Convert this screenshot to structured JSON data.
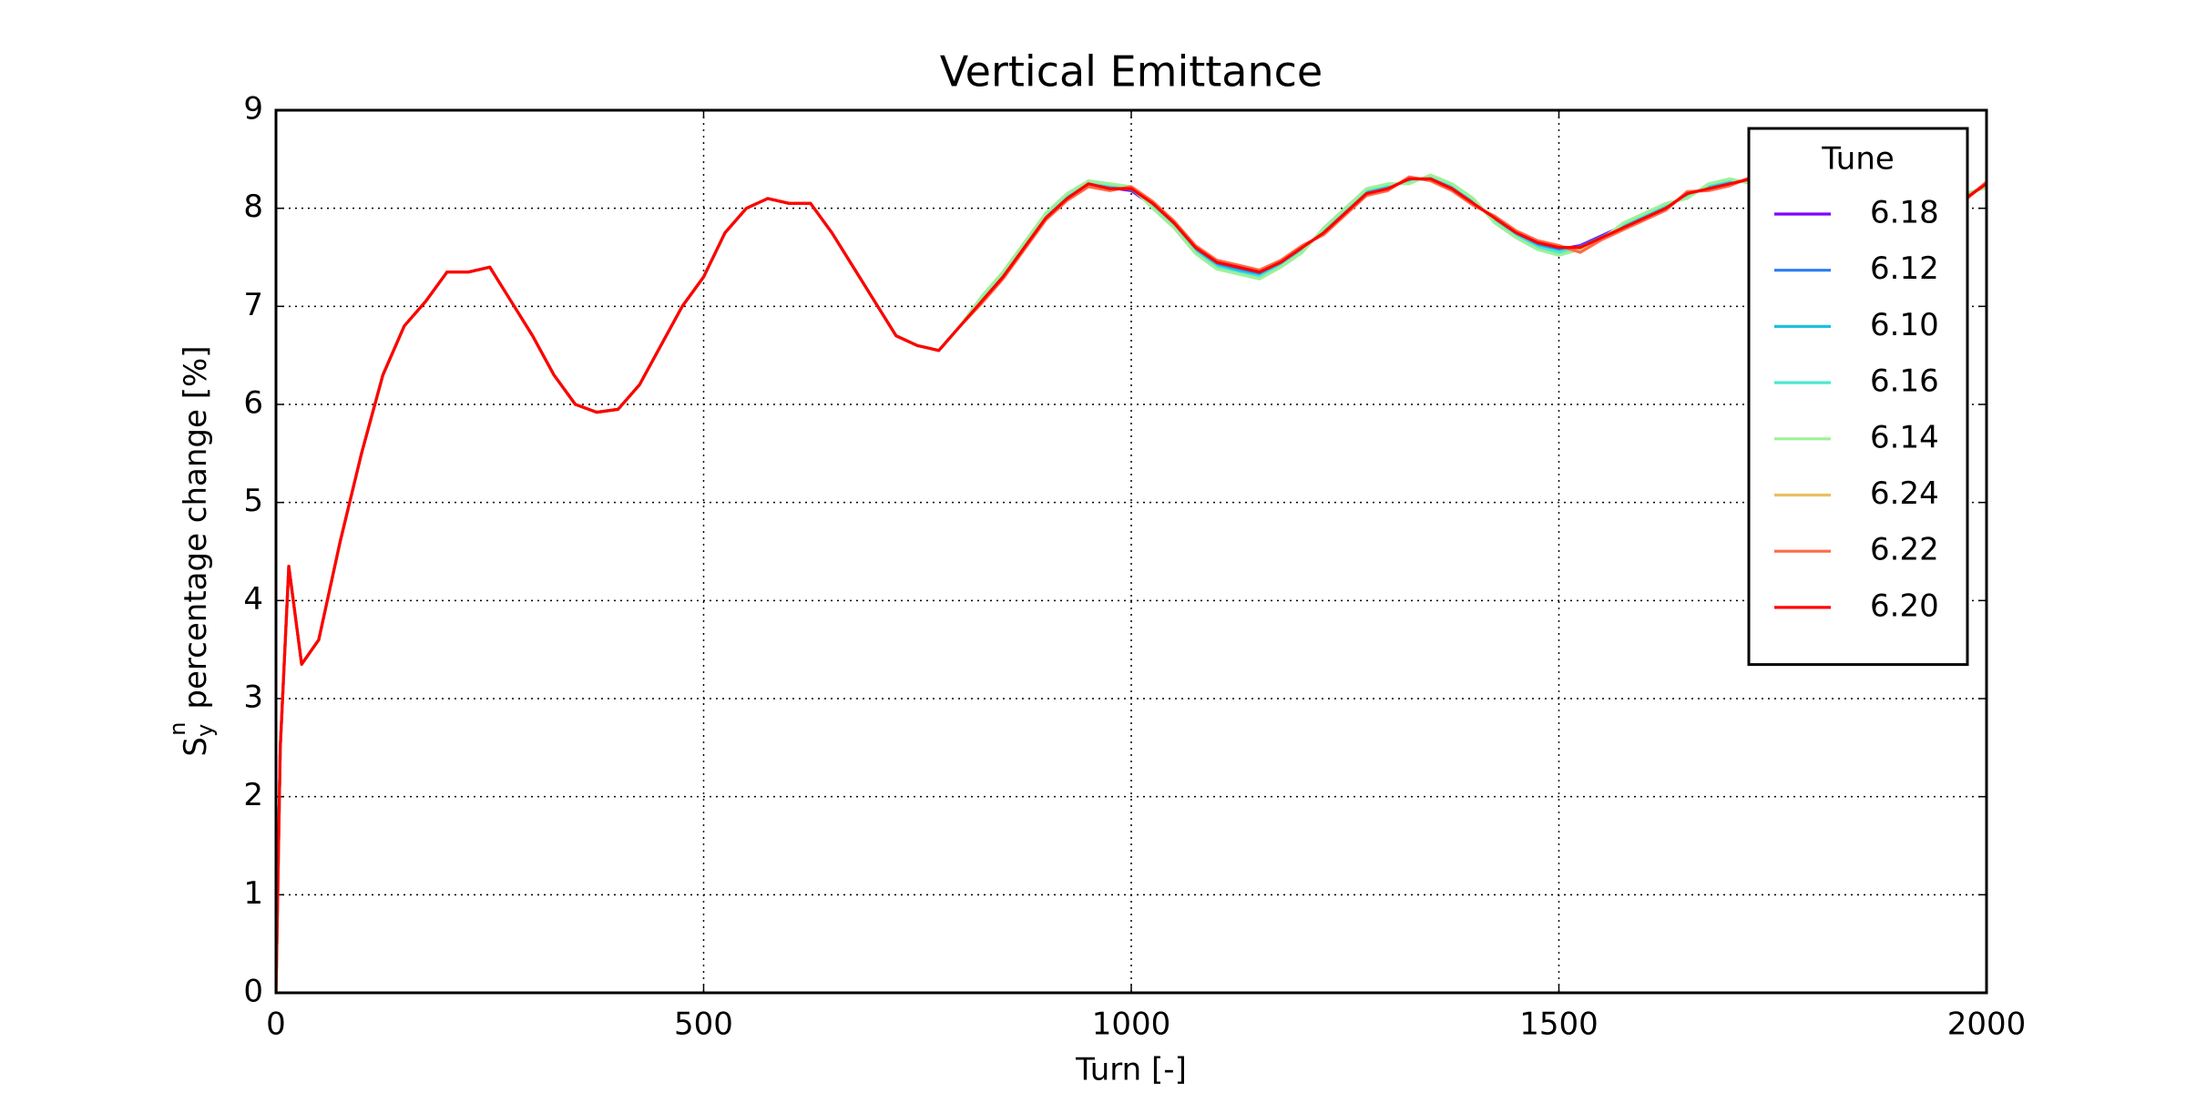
{
  "chart_data": {
    "type": "line",
    "title": "Vertical Emittance",
    "xlabel": "Turn [-]",
    "ylabel": {
      "base": "S",
      "sub": "y",
      "sup": "n",
      "text": "percentage change [%]"
    },
    "legend_title": "Tune",
    "legend": "upper right",
    "grid": true,
    "xlim": [
      0,
      2000
    ],
    "xticks": [
      0,
      500,
      1000,
      1500,
      2000
    ],
    "ylim": [
      0,
      9
    ],
    "yticks": [
      0,
      1,
      2,
      3,
      4,
      5,
      6,
      7,
      8,
      9
    ],
    "x": [
      0,
      5,
      15,
      30,
      50,
      75,
      100,
      125,
      150,
      175,
      200,
      225,
      250,
      275,
      300,
      325,
      350,
      375,
      400,
      425,
      450,
      475,
      500,
      525,
      550,
      575,
      600,
      625,
      650,
      675,
      700,
      725,
      750,
      775,
      800,
      825,
      850,
      875,
      900,
      925,
      950,
      975,
      1000,
      1025,
      1050,
      1075,
      1100,
      1125,
      1150,
      1175,
      1200,
      1225,
      1250,
      1275,
      1300,
      1325,
      1350,
      1375,
      1400,
      1425,
      1450,
      1475,
      1500,
      1525,
      1550,
      1575,
      1600,
      1625,
      1650,
      1675,
      1700,
      1725,
      1750,
      1775,
      1800,
      1825,
      1850,
      1875,
      1900,
      1925,
      1950,
      1975,
      2000
    ],
    "series": [
      {
        "name": "6.18",
        "color": "#8000ff",
        "values": [
          0,
          2.5,
          4.35,
          3.35,
          3.6,
          4.6,
          5.5,
          6.3,
          6.8,
          7.05,
          7.35,
          7.35,
          7.4,
          7.05,
          6.7,
          6.3,
          6.0,
          5.92,
          5.95,
          6.2,
          6.6,
          7.0,
          7.3,
          7.75,
          8.0,
          8.1,
          8.05,
          8.05,
          7.75,
          7.4,
          7.05,
          6.7,
          6.6,
          6.55,
          6.8,
          7.05,
          7.32,
          7.62,
          7.92,
          8.12,
          8.24,
          8.21,
          8.18,
          8.03,
          7.83,
          7.58,
          7.43,
          7.38,
          7.33,
          7.43,
          7.58,
          7.77,
          7.97,
          8.17,
          8.22,
          8.28,
          8.31,
          8.22,
          8.07,
          7.88,
          7.73,
          7.63,
          7.58,
          7.62,
          7.72,
          7.82,
          7.92,
          8.02,
          8.13,
          8.22,
          8.27,
          8.28,
          8.31,
          8.32,
          8.28,
          8.27,
          8.23,
          8.24,
          8.22,
          8.17,
          8.13,
          8.12,
          8.24
        ]
      },
      {
        "name": "6.12",
        "color": "#2c7ef0",
        "values": [
          0,
          2.5,
          4.35,
          3.35,
          3.6,
          4.6,
          5.5,
          6.3,
          6.8,
          7.05,
          7.35,
          7.35,
          7.4,
          7.05,
          6.7,
          6.3,
          6.0,
          5.92,
          5.95,
          6.2,
          6.6,
          7.0,
          7.3,
          7.75,
          8.0,
          8.1,
          8.05,
          8.05,
          7.75,
          7.4,
          7.05,
          6.7,
          6.6,
          6.55,
          6.8,
          7.06,
          7.31,
          7.61,
          7.91,
          8.11,
          8.26,
          8.22,
          8.19,
          8.04,
          7.84,
          7.57,
          7.42,
          7.37,
          7.32,
          7.44,
          7.59,
          7.76,
          7.96,
          8.16,
          8.21,
          8.29,
          8.3,
          8.21,
          8.06,
          7.89,
          7.74,
          7.62,
          7.57,
          7.61,
          7.71,
          7.81,
          7.91,
          8.01,
          8.14,
          8.21,
          8.26,
          8.29,
          8.3,
          8.31,
          8.29,
          8.26,
          8.24,
          8.25,
          8.21,
          8.16,
          8.14,
          8.11,
          8.24
        ]
      },
      {
        "name": "6.10",
        "color": "#1ec0e0",
        "values": [
          0,
          2.5,
          4.35,
          3.35,
          3.6,
          4.6,
          5.5,
          6.3,
          6.8,
          7.05,
          7.35,
          7.35,
          7.4,
          7.05,
          6.7,
          6.3,
          6.0,
          5.92,
          5.95,
          6.2,
          6.6,
          7.0,
          7.3,
          7.75,
          8.0,
          8.1,
          8.05,
          8.05,
          7.75,
          7.4,
          7.05,
          6.7,
          6.6,
          6.55,
          6.8,
          7.07,
          7.33,
          7.63,
          7.93,
          8.13,
          8.25,
          8.23,
          8.2,
          8.02,
          7.82,
          7.56,
          7.41,
          7.36,
          7.31,
          7.42,
          7.57,
          7.78,
          7.98,
          8.18,
          8.23,
          8.27,
          8.32,
          8.23,
          8.08,
          7.87,
          7.72,
          7.61,
          7.56,
          7.6,
          7.7,
          7.83,
          7.93,
          8.03,
          8.12,
          8.23,
          8.28,
          8.27,
          8.32,
          8.33,
          8.27,
          8.28,
          8.22,
          8.23,
          8.23,
          8.18,
          8.12,
          8.13,
          8.23
        ]
      },
      {
        "name": "6.16",
        "color": "#4ee8d0",
        "values": [
          0,
          2.5,
          4.35,
          3.35,
          3.6,
          4.6,
          5.5,
          6.3,
          6.8,
          7.05,
          7.35,
          7.35,
          7.4,
          7.05,
          6.7,
          6.3,
          6.0,
          5.92,
          5.95,
          6.2,
          6.6,
          7.0,
          7.3,
          7.75,
          8.0,
          8.1,
          8.05,
          8.05,
          7.75,
          7.4,
          7.05,
          6.7,
          6.6,
          6.55,
          6.8,
          7.08,
          7.34,
          7.64,
          7.94,
          8.14,
          8.27,
          8.24,
          8.21,
          8.01,
          7.81,
          7.55,
          7.4,
          7.34,
          7.3,
          7.41,
          7.56,
          7.79,
          7.99,
          8.19,
          8.24,
          8.26,
          8.33,
          8.24,
          8.09,
          7.86,
          7.71,
          7.6,
          7.55,
          7.59,
          7.69,
          7.84,
          7.94,
          8.04,
          8.11,
          8.24,
          8.29,
          8.26,
          8.33,
          8.34,
          8.26,
          8.29,
          8.21,
          8.22,
          8.24,
          8.19,
          8.11,
          8.14,
          8.22
        ]
      },
      {
        "name": "6.14",
        "color": "#9ef09a",
        "values": [
          0,
          2.5,
          4.35,
          3.35,
          3.6,
          4.6,
          5.5,
          6.3,
          6.8,
          7.05,
          7.35,
          7.35,
          7.4,
          7.05,
          6.7,
          6.3,
          6.0,
          5.92,
          5.95,
          6.2,
          6.6,
          7.0,
          7.3,
          7.75,
          8.0,
          8.1,
          8.05,
          8.05,
          7.75,
          7.4,
          7.05,
          6.7,
          6.6,
          6.55,
          6.8,
          7.1,
          7.35,
          7.65,
          7.95,
          8.15,
          8.28,
          8.25,
          8.22,
          8.0,
          7.8,
          7.54,
          7.38,
          7.33,
          7.28,
          7.4,
          7.55,
          7.8,
          8.0,
          8.2,
          8.25,
          8.25,
          8.34,
          8.25,
          8.1,
          7.85,
          7.7,
          7.58,
          7.52,
          7.58,
          7.68,
          7.85,
          7.95,
          8.05,
          8.1,
          8.25,
          8.3,
          8.25,
          8.34,
          8.35,
          8.25,
          8.3,
          8.2,
          8.21,
          8.25,
          8.2,
          8.1,
          8.15,
          8.21
        ]
      },
      {
        "name": "6.24",
        "color": "#e8c060",
        "values": [
          0,
          2.5,
          4.35,
          3.35,
          3.6,
          4.6,
          5.5,
          6.3,
          6.8,
          7.05,
          7.35,
          7.35,
          7.4,
          7.05,
          6.7,
          6.3,
          6.0,
          5.92,
          5.95,
          6.2,
          6.6,
          7.0,
          7.3,
          7.75,
          8.0,
          8.1,
          8.05,
          8.05,
          7.75,
          7.4,
          7.05,
          6.7,
          6.6,
          6.55,
          6.8,
          7.04,
          7.29,
          7.59,
          7.89,
          8.09,
          8.23,
          8.19,
          8.21,
          8.06,
          7.86,
          7.61,
          7.46,
          7.41,
          7.36,
          7.46,
          7.61,
          7.74,
          7.94,
          8.14,
          8.19,
          8.31,
          8.29,
          8.19,
          8.04,
          7.91,
          7.76,
          7.66,
          7.61,
          7.59,
          7.69,
          7.79,
          7.89,
          7.99,
          8.16,
          8.19,
          8.24,
          8.31,
          8.29,
          8.29,
          8.31,
          8.24,
          8.26,
          8.26,
          8.19,
          8.14,
          8.16,
          8.09,
          8.26
        ]
      },
      {
        "name": "6.22",
        "color": "#ff6a48",
        "values": [
          0,
          2.5,
          4.35,
          3.35,
          3.6,
          4.6,
          5.5,
          6.3,
          6.8,
          7.05,
          7.35,
          7.35,
          7.4,
          7.05,
          6.7,
          6.3,
          6.0,
          5.92,
          5.95,
          6.2,
          6.6,
          7.0,
          7.3,
          7.75,
          8.0,
          8.1,
          8.05,
          8.05,
          7.75,
          7.4,
          7.05,
          6.7,
          6.6,
          6.55,
          6.8,
          7.03,
          7.28,
          7.58,
          7.88,
          8.08,
          8.22,
          8.18,
          8.22,
          8.07,
          7.87,
          7.62,
          7.47,
          7.42,
          7.37,
          7.47,
          7.62,
          7.73,
          7.93,
          8.13,
          8.18,
          8.32,
          8.28,
          8.18,
          8.03,
          7.92,
          7.77,
          7.67,
          7.62,
          7.55,
          7.68,
          7.78,
          7.88,
          7.98,
          8.17,
          8.18,
          8.23,
          8.32,
          8.28,
          8.28,
          8.32,
          8.23,
          8.27,
          8.27,
          8.18,
          8.13,
          8.17,
          8.08,
          8.27
        ]
      },
      {
        "name": "6.20",
        "color": "#ff0000",
        "values": [
          0,
          2.5,
          4.35,
          3.35,
          3.6,
          4.6,
          5.5,
          6.3,
          6.8,
          7.05,
          7.35,
          7.35,
          7.4,
          7.05,
          6.7,
          6.3,
          6.0,
          5.92,
          5.95,
          6.2,
          6.6,
          7.0,
          7.3,
          7.75,
          8.0,
          8.1,
          8.05,
          8.05,
          7.75,
          7.4,
          7.05,
          6.7,
          6.6,
          6.55,
          6.8,
          7.05,
          7.3,
          7.6,
          7.9,
          8.1,
          8.25,
          8.2,
          8.2,
          8.05,
          7.85,
          7.6,
          7.45,
          7.4,
          7.35,
          7.45,
          7.6,
          7.75,
          7.95,
          8.15,
          8.2,
          8.3,
          8.3,
          8.2,
          8.05,
          7.9,
          7.75,
          7.65,
          7.6,
          7.6,
          7.7,
          7.8,
          7.9,
          8.0,
          8.15,
          8.2,
          8.25,
          8.3,
          8.3,
          8.3,
          8.3,
          8.25,
          8.25,
          8.25,
          8.2,
          8.15,
          8.15,
          8.1,
          8.25
        ]
      }
    ]
  }
}
